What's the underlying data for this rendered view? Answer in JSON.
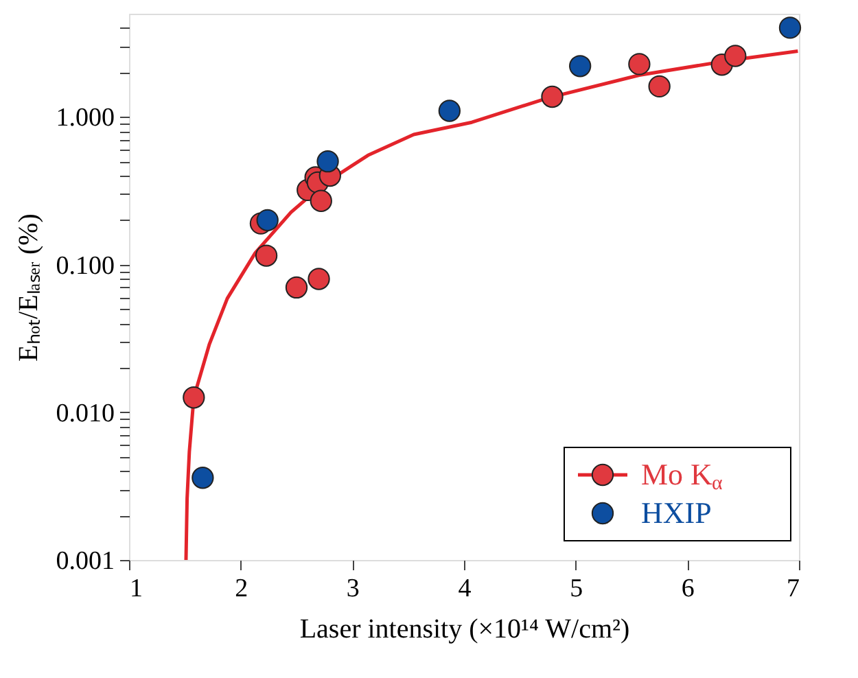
{
  "chart_data": {
    "type": "scatter",
    "xlabel": "Laser intensity (×10¹⁴ W/cm²)",
    "ylabel": "Eₕₒₜ/Eₗₐₛₑᵣ (%)",
    "xlim": [
      1,
      7
    ],
    "xticks": [
      1,
      2,
      3,
      4,
      5,
      6,
      7
    ],
    "ylim": [
      0.001,
      5
    ],
    "log": "y",
    "yticks": [
      {
        "value": 0.001,
        "label": "0.001"
      },
      {
        "value": 0.002,
        "label": null
      },
      {
        "value": 0.003,
        "label": null
      },
      {
        "value": 0.004,
        "label": null
      },
      {
        "value": 0.005,
        "label": null
      },
      {
        "value": 0.006,
        "label": null
      },
      {
        "value": 0.007,
        "label": null
      },
      {
        "value": 0.008,
        "label": null
      },
      {
        "value": 0.009,
        "label": null
      },
      {
        "value": 0.01,
        "label": "0.010"
      },
      {
        "value": 0.02,
        "label": null
      },
      {
        "value": 0.03,
        "label": null
      },
      {
        "value": 0.04,
        "label": null
      },
      {
        "value": 0.05,
        "label": null
      },
      {
        "value": 0.06,
        "label": null
      },
      {
        "value": 0.07,
        "label": null
      },
      {
        "value": 0.08,
        "label": null
      },
      {
        "value": 0.09,
        "label": null
      },
      {
        "value": 0.1,
        "label": "0.100"
      },
      {
        "value": 0.2,
        "label": null
      },
      {
        "value": 0.3,
        "label": null
      },
      {
        "value": 0.4,
        "label": null
      },
      {
        "value": 0.5,
        "label": null
      },
      {
        "value": 0.6,
        "label": null
      },
      {
        "value": 0.7,
        "label": null
      },
      {
        "value": 0.8,
        "label": null
      },
      {
        "value": 0.9,
        "label": null
      },
      {
        "value": 1,
        "label": "1.000"
      },
      {
        "value": 2,
        "label": null
      },
      {
        "value": 3,
        "label": null
      },
      {
        "value": 4,
        "label": null
      }
    ],
    "grid": false,
    "legend": "bottom right",
    "marker": "circle",
    "series": [
      {
        "type": "line",
        "color": "#e3242b",
        "marker": "none",
        "x": [
          1.51,
          1.52,
          1.54,
          1.58,
          1.72,
          1.88,
          2.13,
          2.45,
          2.74,
          3.14,
          3.55,
          4.07,
          4.76,
          5.57,
          6.39,
          6.99
        ],
        "values": [
          0.001,
          0.0026,
          0.0054,
          0.0126,
          0.029,
          0.059,
          0.12,
          0.226,
          0.35,
          0.55,
          0.76,
          0.92,
          1.35,
          1.92,
          2.42,
          2.79
        ]
      },
      {
        "name": "Mo K$_{α}$",
        "color": "#e0393f",
        "x": [
          1.58,
          2.18,
          2.23,
          2.5,
          2.7,
          2.6,
          2.67,
          2.69,
          2.72,
          2.8,
          4.79,
          5.57,
          5.75,
          6.31,
          6.43
        ],
        "values": [
          0.0126,
          0.19,
          0.115,
          0.07,
          0.08,
          0.32,
          0.39,
          0.36,
          0.27,
          0.4,
          1.37,
          2.28,
          1.61,
          2.26,
          2.59
        ]
      },
      {
        "name": "HXIP",
        "color": "#0d4ea0",
        "x": [
          1.66,
          2.24,
          2.78,
          3.87,
          5.04,
          6.92
        ],
        "values": [
          0.0036,
          0.2,
          0.5,
          1.1,
          2.21,
          4.02
        ]
      }
    ]
  }
}
